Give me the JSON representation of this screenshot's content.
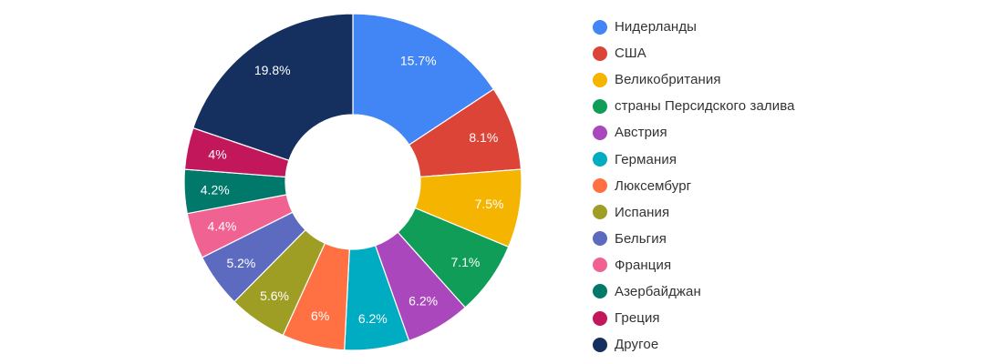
{
  "chart_data": {
    "type": "pie",
    "subtype": "donut",
    "title": "",
    "categories": [
      "Нидерланды",
      "США",
      "Великобритания",
      "страны Персидского залива",
      "Австрия",
      "Германия",
      "Люксембург",
      "Испания",
      "Бельгия",
      "Франция",
      "Азербайджан",
      "Греция",
      "Другое"
    ],
    "values": [
      15.7,
      8.1,
      7.5,
      7.1,
      6.2,
      6.2,
      6,
      5.6,
      5.2,
      4.4,
      4.2,
      4,
      19.8
    ],
    "labels": [
      "15.7%",
      "8.1%",
      "7.5%",
      "7.1%",
      "6.2%",
      "6.2%",
      "6%",
      "5.6%",
      "5.2%",
      "4.4%",
      "4.2%",
      "4%",
      "19.8%"
    ],
    "colors": [
      "#4285f4",
      "#db4437",
      "#f4b400",
      "#0f9d58",
      "#ab47bc",
      "#00acc1",
      "#ff7043",
      "#9e9d24",
      "#5c6bc0",
      "#f06292",
      "#00796b",
      "#c2185b",
      "#152f5e"
    ],
    "unit": "%",
    "start_angle": 0,
    "direction": "clockwise",
    "legend_position": "right"
  },
  "legend": {
    "items": [
      {
        "label": "Нидерланды",
        "color": "#4285f4"
      },
      {
        "label": "США",
        "color": "#db4437"
      },
      {
        "label": "Великобритания",
        "color": "#f4b400"
      },
      {
        "label": "страны Персидского залива",
        "color": "#0f9d58"
      },
      {
        "label": "Австрия",
        "color": "#ab47bc"
      },
      {
        "label": "Германия",
        "color": "#00acc1"
      },
      {
        "label": "Люксембург",
        "color": "#ff7043"
      },
      {
        "label": "Испания",
        "color": "#9e9d24"
      },
      {
        "label": "Бельгия",
        "color": "#5c6bc0"
      },
      {
        "label": "Франция",
        "color": "#f06292"
      },
      {
        "label": "Азербайджан",
        "color": "#00796b"
      },
      {
        "label": "Греция",
        "color": "#c2185b"
      },
      {
        "label": "Другое",
        "color": "#152f5e"
      }
    ]
  }
}
